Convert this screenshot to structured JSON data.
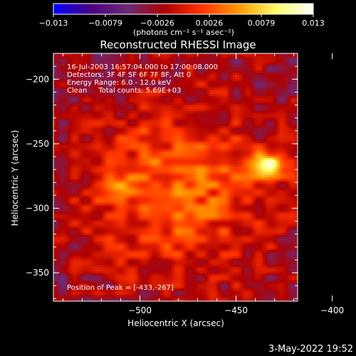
{
  "chart_data": {
    "type": "heatmap",
    "title": "Reconstructed RHESSI Image",
    "xlabel": "Heliocentric X (arcsec)",
    "ylabel": "Heliocentric Y (arcsec)",
    "xlim": [
      -545,
      -418
    ],
    "ylim": [
      -372,
      -180
    ],
    "x_ticks": [
      {
        "value": -500,
        "label": "−500"
      },
      {
        "value": -450,
        "label": "−450"
      },
      {
        "value": -400,
        "label": "−400"
      }
    ],
    "y_ticks": [
      {
        "value": -200,
        "label": "−200"
      },
      {
        "value": -250,
        "label": "−250"
      },
      {
        "value": -300,
        "label": "−300"
      },
      {
        "value": -350,
        "label": "−350"
      }
    ],
    "colorbar": {
      "range": [
        -0.013,
        0.013
      ],
      "tick_labels": [
        "−0.013",
        "−0.0079",
        "−0.0026",
        "0.0026",
        "0.0079",
        "0.013"
      ],
      "units": "(photons cm⁻² s⁻¹ asec⁻²)",
      "colors": [
        "#0000ff",
        "#4b0082",
        "#6b2a78",
        "#b00000",
        "#ff3300",
        "#ff9900",
        "#ffff66",
        "#ffffff"
      ]
    },
    "annotations": [
      "16-Jul-2003 16:57:04.000 to 17:00:08.000",
      "Detectors: 3F 4F 5F 6F 7F 8F, Att 0",
      "Energy Range: 6.0 - 12.0 keV",
      "Clean     Total counts: 5.69E+03"
    ],
    "peak_label": "Position of Peak = [-433,-267]",
    "peak": {
      "x": -433,
      "y": -267,
      "value": 0.013
    },
    "secondary_peak": {
      "x": -509,
      "y": -285,
      "value": 0.008
    },
    "emission_region": {
      "x_range": [
        -535,
        -425
      ],
      "y_range": [
        -360,
        -210
      ],
      "level": 0.004
    },
    "background_level": -0.003,
    "grid": false
  },
  "footer": {
    "date_stamp": "3-May-2022 19:52"
  }
}
